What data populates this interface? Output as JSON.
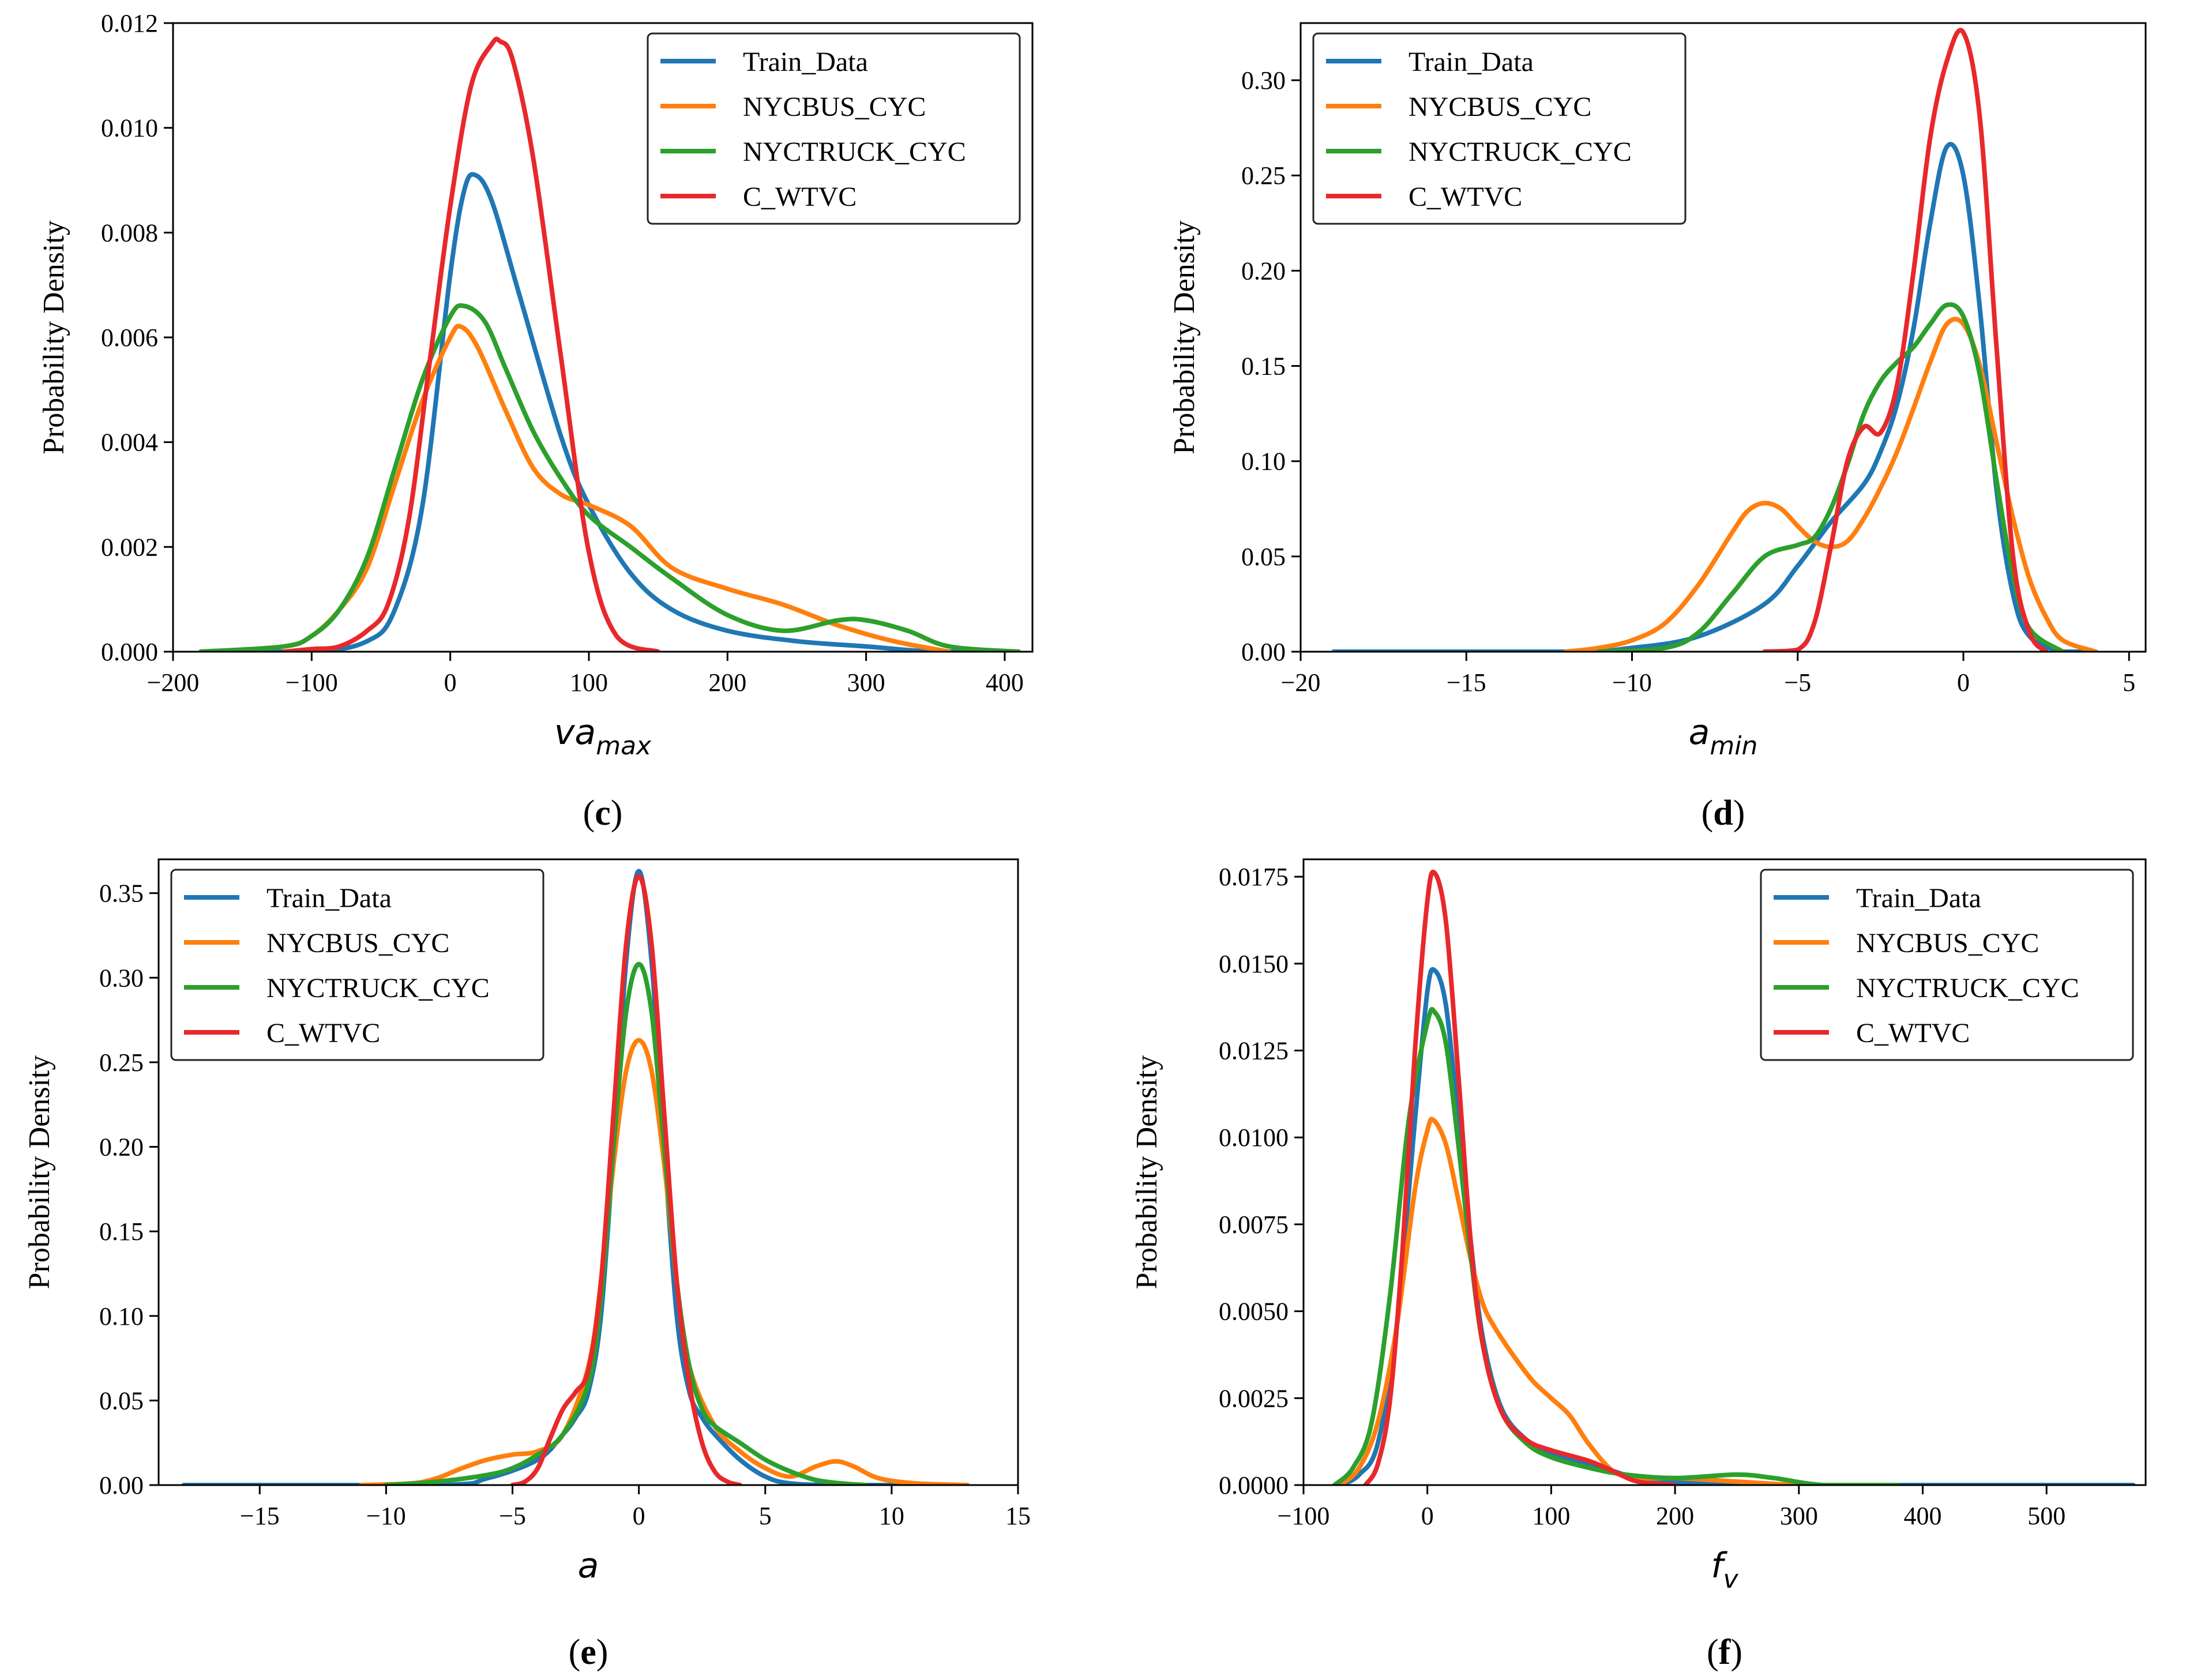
{
  "colors": {
    "Train_Data": "#1f77b4",
    "NYCBUS_CYC": "#ff7f0e",
    "NYCTRUCK_CYC": "#2ca02c",
    "C_WTVC": "#e8282b"
  },
  "chart_data": [
    {
      "id": "c",
      "type": "line",
      "title": "",
      "caption_open": "(",
      "caption_letter": "c",
      "caption_close": ")",
      "ylabel": "Probability Density",
      "xlabel_main": "va",
      "xlabel_sub": "max",
      "xlim": [
        -200,
        420
      ],
      "ylim": [
        0,
        0.012
      ],
      "xticks": [
        -200,
        -100,
        0,
        100,
        200,
        300,
        400
      ],
      "xtick_labels": [
        "−200",
        "−100",
        "0",
        "100",
        "200",
        "300",
        "400"
      ],
      "yticks": [
        0,
        0.002,
        0.004,
        0.006,
        0.008,
        0.01,
        0.012
      ],
      "ytick_labels": [
        "0.000",
        "0.002",
        "0.004",
        "0.006",
        "0.008",
        "0.010",
        "0.012"
      ],
      "legend_position": "top-right",
      "series": [
        {
          "name": "Train_Data",
          "x": [
            -180,
            -100,
            -60,
            -40,
            -20,
            0,
            10,
            18,
            30,
            50,
            80,
            100,
            130,
            160,
            200,
            250,
            300,
            350,
            410
          ],
          "y": [
            0,
            0,
            0.0002,
            0.0008,
            0.0028,
            0.0072,
            0.0088,
            0.0091,
            0.0086,
            0.0068,
            0.0041,
            0.0028,
            0.0015,
            0.0008,
            0.0004,
            0.0002,
            0.0001,
            0,
            0
          ]
        },
        {
          "name": "NYCBUS_CYC",
          "x": [
            -180,
            -120,
            -100,
            -80,
            -60,
            -40,
            -20,
            0,
            8,
            20,
            40,
            60,
            80,
            100,
            130,
            160,
            200,
            240,
            280,
            320,
            360
          ],
          "y": [
            0,
            0.0001,
            0.0003,
            0.0008,
            0.0016,
            0.0032,
            0.0048,
            0.006,
            0.0062,
            0.0058,
            0.0046,
            0.0035,
            0.003,
            0.0028,
            0.0024,
            0.0016,
            0.0012,
            0.0009,
            0.0005,
            0.0002,
            0
          ]
        },
        {
          "name": "NYCTRUCK_CYC",
          "x": [
            -180,
            -120,
            -100,
            -80,
            -60,
            -40,
            -20,
            0,
            10,
            25,
            40,
            60,
            80,
            100,
            130,
            160,
            200,
            240,
            280,
            300,
            330,
            360,
            410
          ],
          "y": [
            0,
            0.0001,
            0.0003,
            0.0008,
            0.0018,
            0.0035,
            0.0052,
            0.0064,
            0.0066,
            0.0063,
            0.0054,
            0.0042,
            0.0033,
            0.0026,
            0.002,
            0.0014,
            0.0007,
            0.0004,
            0.0006,
            0.0006,
            0.0004,
            0.0001,
            0
          ]
        },
        {
          "name": "C_WTVC",
          "x": [
            -120,
            -100,
            -80,
            -60,
            -45,
            -30,
            -15,
            0,
            15,
            30,
            36,
            45,
            60,
            80,
            100,
            120,
            150
          ],
          "y": [
            0,
            5e-05,
            0.0001,
            0.0004,
            0.0009,
            0.0025,
            0.0055,
            0.0085,
            0.0108,
            0.0116,
            0.01165,
            0.0113,
            0.0094,
            0.0056,
            0.0019,
            0.0003,
            0
          ]
        }
      ]
    },
    {
      "id": "d",
      "type": "line",
      "title": "",
      "caption_open": "(",
      "caption_letter": "d",
      "caption_close": ")",
      "ylabel": "Probability Density",
      "xlabel_main": "a",
      "xlabel_sub": "min",
      "xlim": [
        -20,
        5.5
      ],
      "ylim": [
        0,
        0.33
      ],
      "xticks": [
        -20,
        -15,
        -10,
        -5,
        0,
        5
      ],
      "xtick_labels": [
        "−20",
        "−15",
        "−10",
        "−5",
        "0",
        "5"
      ],
      "yticks": [
        0,
        0.05,
        0.1,
        0.15,
        0.2,
        0.25,
        0.3
      ],
      "ytick_labels": [
        "0.00",
        "0.05",
        "0.10",
        "0.15",
        "0.20",
        "0.25",
        "0.30"
      ],
      "legend_position": "top-left",
      "series": [
        {
          "name": "Train_Data",
          "x": [
            -19,
            -12,
            -10,
            -8,
            -6,
            -5,
            -4,
            -3,
            -2.5,
            -2,
            -1.5,
            -1,
            -0.5,
            0,
            0.5,
            1,
            1.5,
            2,
            3,
            4
          ],
          "y": [
            0,
            0,
            0.002,
            0.008,
            0.025,
            0.045,
            0.068,
            0.088,
            0.105,
            0.13,
            0.17,
            0.225,
            0.265,
            0.25,
            0.18,
            0.085,
            0.03,
            0.008,
            0,
            0
          ]
        },
        {
          "name": "NYCBUS_CYC",
          "x": [
            -12,
            -11,
            -10,
            -9,
            -8,
            -7,
            -6.5,
            -6,
            -5.5,
            -5,
            -4.5,
            -4,
            -3.5,
            -3,
            -2.5,
            -2,
            -1.5,
            -1,
            -0.5,
            0,
            0.5,
            1,
            1.5,
            2,
            2.5,
            3,
            4
          ],
          "y": [
            0,
            0.002,
            0.006,
            0.015,
            0.035,
            0.062,
            0.074,
            0.078,
            0.075,
            0.066,
            0.058,
            0.055,
            0.058,
            0.07,
            0.086,
            0.105,
            0.128,
            0.152,
            0.172,
            0.172,
            0.15,
            0.11,
            0.07,
            0.038,
            0.018,
            0.006,
            0
          ]
        },
        {
          "name": "NYCTRUCK_CYC",
          "x": [
            -11,
            -9,
            -8,
            -7,
            -6,
            -5,
            -4.5,
            -4,
            -3.5,
            -3,
            -2.5,
            -2,
            -1.5,
            -1,
            -0.5,
            0,
            0.5,
            1,
            1.5,
            2,
            3
          ],
          "y": [
            0,
            0.002,
            0.01,
            0.03,
            0.05,
            0.056,
            0.06,
            0.075,
            0.098,
            0.125,
            0.142,
            0.152,
            0.16,
            0.172,
            0.182,
            0.176,
            0.145,
            0.09,
            0.04,
            0.012,
            0
          ]
        },
        {
          "name": "C_WTVC",
          "x": [
            -6,
            -5,
            -4.5,
            -4,
            -3.5,
            -3,
            -2.5,
            -2,
            -1.5,
            -1,
            -0.5,
            0,
            0.5,
            1,
            1.5,
            2,
            2.5
          ],
          "y": [
            0,
            0.001,
            0.015,
            0.055,
            0.1,
            0.118,
            0.115,
            0.14,
            0.2,
            0.27,
            0.31,
            0.325,
            0.28,
            0.16,
            0.05,
            0.01,
            0
          ]
        }
      ]
    },
    {
      "id": "e",
      "type": "line",
      "title": "",
      "caption_open": "(",
      "caption_letter": "e",
      "caption_close": ")",
      "ylabel": "Probability Density",
      "xlabel_main": "a",
      "xlabel_sub": "",
      "xlim": [
        -19,
        15
      ],
      "ylim": [
        0,
        0.37
      ],
      "xticks": [
        -15,
        -10,
        -5,
        0,
        5,
        10,
        15
      ],
      "xtick_labels": [
        "−15",
        "−10",
        "−5",
        "0",
        "5",
        "10",
        "15"
      ],
      "yticks": [
        0,
        0.05,
        0.1,
        0.15,
        0.2,
        0.25,
        0.3,
        0.35
      ],
      "ytick_labels": [
        "0.00",
        "0.05",
        "0.10",
        "0.15",
        "0.20",
        "0.25",
        "0.30",
        "0.35"
      ],
      "legend_position": "top-left",
      "series": [
        {
          "name": "Train_Data",
          "x": [
            -18,
            -8,
            -6,
            -4,
            -3,
            -2.5,
            -2,
            -1.5,
            -1,
            -0.5,
            0,
            0.5,
            1,
            1.5,
            2,
            2.5,
            3,
            4,
            5,
            6,
            8,
            13
          ],
          "y": [
            0,
            0,
            0.004,
            0.015,
            0.03,
            0.04,
            0.055,
            0.1,
            0.2,
            0.31,
            0.363,
            0.31,
            0.2,
            0.1,
            0.055,
            0.04,
            0.03,
            0.015,
            0.005,
            0.001,
            0,
            0
          ]
        },
        {
          "name": "NYCBUS_CYC",
          "x": [
            -11,
            -9,
            -8,
            -7,
            -6,
            -5,
            -4,
            -3,
            -2,
            -1.5,
            -1,
            -0.5,
            0,
            0.5,
            1,
            1.5,
            2,
            3,
            4,
            5,
            6,
            7,
            7.8,
            8.5,
            9.5,
            11,
            13
          ],
          "y": [
            0,
            0.001,
            0.004,
            0.01,
            0.015,
            0.018,
            0.02,
            0.03,
            0.07,
            0.12,
            0.19,
            0.245,
            0.263,
            0.245,
            0.19,
            0.12,
            0.07,
            0.035,
            0.02,
            0.01,
            0.005,
            0.011,
            0.014,
            0.011,
            0.004,
            0.001,
            0
          ]
        },
        {
          "name": "NYCTRUCK_CYC",
          "x": [
            -10,
            -8,
            -6,
            -5,
            -4,
            -3,
            -2,
            -1.5,
            -1,
            -0.5,
            0,
            0.5,
            1,
            1.5,
            2,
            2.5,
            3,
            4,
            5,
            6,
            7,
            8,
            9
          ],
          "y": [
            0,
            0.002,
            0.006,
            0.01,
            0.018,
            0.03,
            0.06,
            0.11,
            0.2,
            0.28,
            0.308,
            0.28,
            0.2,
            0.12,
            0.07,
            0.045,
            0.035,
            0.025,
            0.015,
            0.008,
            0.003,
            0.001,
            0
          ]
        },
        {
          "name": "C_WTVC",
          "x": [
            -5,
            -4.5,
            -4,
            -3.5,
            -3,
            -2.5,
            -2,
            -1.5,
            -1,
            -0.5,
            0,
            0.5,
            1,
            1.5,
            2,
            2.5,
            3,
            3.5,
            4
          ],
          "y": [
            0,
            0.002,
            0.01,
            0.028,
            0.045,
            0.055,
            0.068,
            0.12,
            0.22,
            0.32,
            0.36,
            0.32,
            0.22,
            0.12,
            0.06,
            0.025,
            0.008,
            0.002,
            0
          ]
        }
      ]
    },
    {
      "id": "f",
      "type": "line",
      "title": "",
      "caption_open": "(",
      "caption_letter": "f",
      "caption_close": ")",
      "ylabel": "Probability Density",
      "xlabel_main": "f",
      "xlabel_sub": "v",
      "xlim": [
        -100,
        580
      ],
      "ylim": [
        0,
        0.018
      ],
      "xticks": [
        -100,
        0,
        100,
        200,
        300,
        400,
        500
      ],
      "xtick_labels": [
        "−100",
        "0",
        "100",
        "200",
        "300",
        "400",
        "500"
      ],
      "yticks": [
        0,
        0.0025,
        0.005,
        0.0075,
        0.01,
        0.0125,
        0.015,
        0.0175
      ],
      "ytick_labels": [
        "0.0000",
        "0.0025",
        "0.0050",
        "0.0075",
        "0.0100",
        "0.0125",
        "0.0150",
        "0.0175"
      ],
      "legend_position": "top-right",
      "series": [
        {
          "name": "Train_Data",
          "x": [
            -70,
            -55,
            -40,
            -25,
            -10,
            0,
            6,
            15,
            25,
            35,
            45,
            60,
            80,
            100,
            120,
            150,
            170,
            200,
            250,
            300,
            400,
            570
          ],
          "y": [
            0,
            0.0003,
            0.0012,
            0.0045,
            0.0105,
            0.0142,
            0.0148,
            0.0138,
            0.0105,
            0.007,
            0.0042,
            0.0022,
            0.0013,
            0.0009,
            0.0007,
            0.0004,
            0.0002,
            0.0001,
            0,
            0,
            0,
            0
          ]
        },
        {
          "name": "NYCBUS_CYC",
          "x": [
            -70,
            -55,
            -40,
            -25,
            -10,
            0,
            5,
            15,
            25,
            35,
            45,
            55,
            70,
            85,
            100,
            115,
            130,
            150,
            170,
            200,
            250,
            300,
            350
          ],
          "y": [
            0,
            0.0005,
            0.0018,
            0.0045,
            0.0085,
            0.0102,
            0.0105,
            0.0098,
            0.0082,
            0.0065,
            0.0052,
            0.0045,
            0.0037,
            0.003,
            0.0025,
            0.002,
            0.0012,
            0.0004,
            0.0002,
            0.0002,
            0.0001,
            0,
            0
          ]
        },
        {
          "name": "NYCTRUCK_CYC",
          "x": [
            -75,
            -60,
            -45,
            -30,
            -15,
            0,
            6,
            15,
            25,
            35,
            45,
            60,
            80,
            100,
            130,
            160,
            200,
            250,
            280,
            320,
            380
          ],
          "y": [
            0,
            0.0005,
            0.0018,
            0.0055,
            0.0105,
            0.0133,
            0.0136,
            0.0127,
            0.0098,
            0.0066,
            0.004,
            0.0021,
            0.0012,
            0.0008,
            0.0005,
            0.0003,
            0.0002,
            0.0003,
            0.0002,
            0,
            0
          ]
        },
        {
          "name": "C_WTVC",
          "x": [
            -50,
            -40,
            -30,
            -20,
            -10,
            0,
            6,
            15,
            25,
            35,
            45,
            60,
            80,
            100,
            130,
            150,
            170,
            200
          ],
          "y": [
            0,
            0.0006,
            0.0025,
            0.0068,
            0.0125,
            0.0168,
            0.0176,
            0.0162,
            0.0118,
            0.007,
            0.004,
            0.0021,
            0.0013,
            0.001,
            0.0007,
            0.0004,
            0.0001,
            0
          ]
        }
      ]
    }
  ]
}
